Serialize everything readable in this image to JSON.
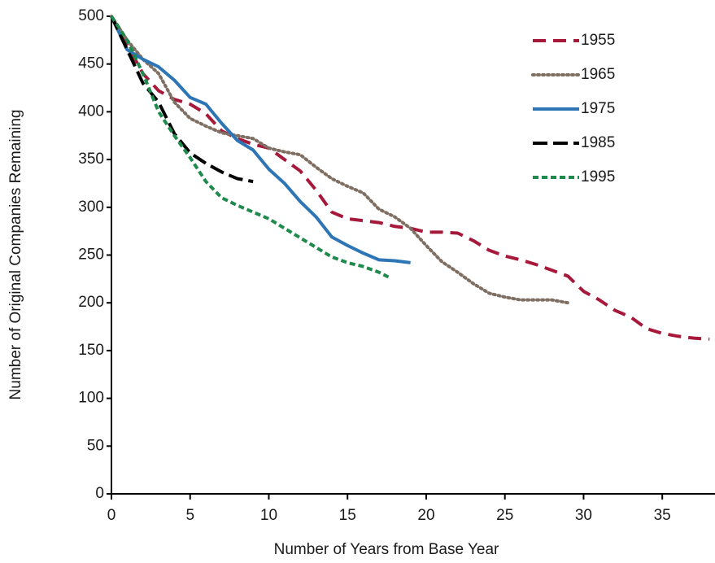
{
  "chart_data": {
    "type": "line",
    "x_label": "Number of Years from Base Year",
    "y_label": "Number of Original Companies Remaining",
    "xlim": [
      0,
      38.35
    ],
    "xticks": [
      0,
      5,
      10,
      15,
      20,
      25,
      30,
      35
    ],
    "ylim": [
      0,
      500
    ],
    "yticks": [
      0,
      50,
      100,
      150,
      200,
      250,
      300,
      350,
      400,
      450,
      500
    ],
    "grid": false,
    "legend": "top-right",
    "series": [
      {
        "name": "1955",
        "color": "#a6193a",
        "dash": "dashed",
        "x": [
          0,
          1,
          2,
          3,
          4,
          5,
          6,
          7,
          8,
          9,
          10,
          11,
          12,
          13,
          14,
          15,
          16,
          17,
          18,
          19,
          20,
          21,
          22,
          23,
          24,
          25,
          26,
          27,
          28,
          29,
          30,
          31,
          32,
          33,
          34,
          35,
          36,
          37,
          38
        ],
        "values": [
          500,
          470,
          440,
          422,
          413,
          408,
          398,
          380,
          372,
          366,
          362,
          350,
          338,
          318,
          295,
          288,
          286,
          284,
          280,
          278,
          274,
          274,
          273,
          265,
          255,
          249,
          245,
          240,
          234,
          228,
          212,
          203,
          192,
          185,
          173,
          168,
          165,
          163,
          162
        ]
      },
      {
        "name": "1965",
        "color": "#7f6f63",
        "dash": "dotted",
        "x": [
          0,
          1,
          2,
          3,
          4,
          5,
          6,
          7,
          8,
          9,
          10,
          11,
          12,
          13,
          14,
          15,
          16,
          17,
          18,
          19,
          20,
          21,
          22,
          23,
          24,
          25,
          26,
          27,
          28,
          29
        ],
        "values": [
          500,
          475,
          455,
          440,
          410,
          393,
          385,
          378,
          375,
          372,
          362,
          358,
          355,
          342,
          330,
          322,
          315,
          298,
          290,
          278,
          260,
          243,
          232,
          220,
          210,
          206,
          203,
          203,
          203,
          200
        ]
      },
      {
        "name": "1975",
        "color": "#2e75b6",
        "dash": "solid",
        "x": [
          0,
          1,
          2,
          3,
          4,
          5,
          6,
          7,
          8,
          9,
          10,
          11,
          12,
          13,
          14,
          15,
          16,
          17,
          18,
          19
        ],
        "values": [
          500,
          465,
          455,
          447,
          433,
          415,
          408,
          388,
          370,
          360,
          340,
          325,
          306,
          290,
          269,
          260,
          252,
          245,
          244,
          242
        ]
      },
      {
        "name": "1985",
        "color": "#000000",
        "dash": "long-dashed",
        "x": [
          0,
          1,
          2,
          3,
          4,
          5,
          6,
          7,
          8,
          9
        ],
        "values": [
          500,
          465,
          430,
          410,
          377,
          357,
          346,
          337,
          330,
          327
        ]
      },
      {
        "name": "1995",
        "color": "#1e8a4c",
        "dash": "short-dashed",
        "x": [
          0,
          1,
          2,
          3,
          4,
          5,
          6,
          7,
          8,
          9,
          10,
          11,
          12,
          13,
          14,
          15,
          16,
          17,
          17.6
        ],
        "values": [
          500,
          475,
          440,
          400,
          375,
          352,
          327,
          310,
          302,
          295,
          288,
          278,
          268,
          258,
          248,
          242,
          238,
          232,
          227
        ]
      }
    ]
  }
}
